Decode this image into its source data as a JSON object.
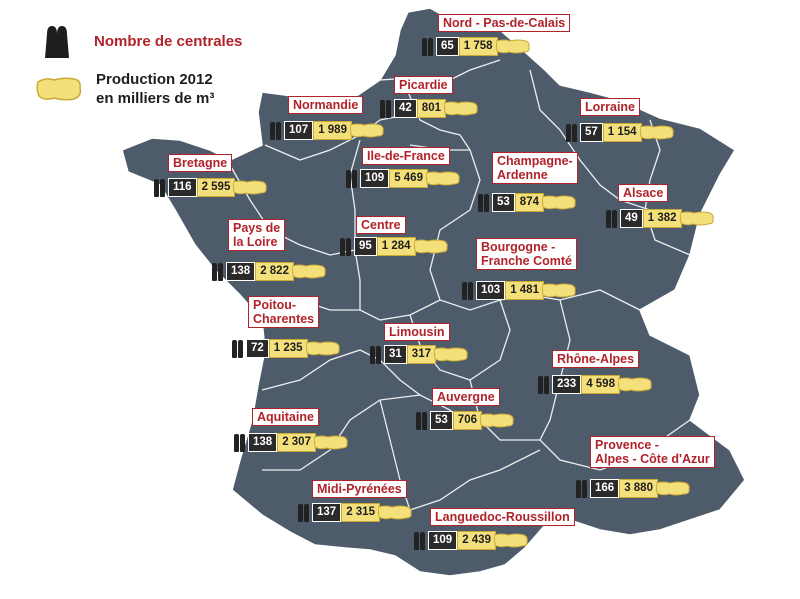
{
  "legend": {
    "plants_label": "Nombre de centrales",
    "production_label_line1": "Production 2012",
    "production_label_line2": "en milliers de m³"
  },
  "colors": {
    "land": "#4d5b6b",
    "border": "#ffffff",
    "label_red": "#b0232a",
    "count_bg": "#2a2a2a",
    "prod_bg": "#f4e07a"
  },
  "regions": [
    {
      "name": "Nord - Pas-de-Calais",
      "plants": "65",
      "production": "1 758"
    },
    {
      "name": "Picardie",
      "plants": "42",
      "production": "801"
    },
    {
      "name": "Normandie",
      "plants": "107",
      "production": "1 989"
    },
    {
      "name": "Lorraine",
      "plants": "57",
      "production": "1 154"
    },
    {
      "name": "Ile-de-France",
      "plants": "109",
      "production": "5 469"
    },
    {
      "name": "Bretagne",
      "plants": "116",
      "production": "2 595"
    },
    {
      "name": "Champagne-\nArdenne",
      "plants": "53",
      "production": "874"
    },
    {
      "name": "Alsace",
      "plants": "49",
      "production": "1 382"
    },
    {
      "name": "Pays de\nla Loire",
      "plants": "138",
      "production": "2 822"
    },
    {
      "name": "Centre",
      "plants": "95",
      "production": "1 284"
    },
    {
      "name": "Bourgogne -\nFranche Comté",
      "plants": "103",
      "production": "1 481"
    },
    {
      "name": "Poitou-\nCharentes",
      "plants": "72",
      "production": "1 235"
    },
    {
      "name": "Limousin",
      "plants": "31",
      "production": "317"
    },
    {
      "name": "Rhône-Alpes",
      "plants": "233",
      "production": "4 598"
    },
    {
      "name": "Auvergne",
      "plants": "53",
      "production": "706"
    },
    {
      "name": "Aquitaine",
      "plants": "138",
      "production": "2 307"
    },
    {
      "name": "Provence -\nAlpes - Côte d'Azur",
      "plants": "166",
      "production": "3 880"
    },
    {
      "name": "Midi-Pyrénées",
      "plants": "137",
      "production": "2 315"
    },
    {
      "name": "Languedoc-Roussillon",
      "plants": "109",
      "production": "2 439"
    }
  ]
}
